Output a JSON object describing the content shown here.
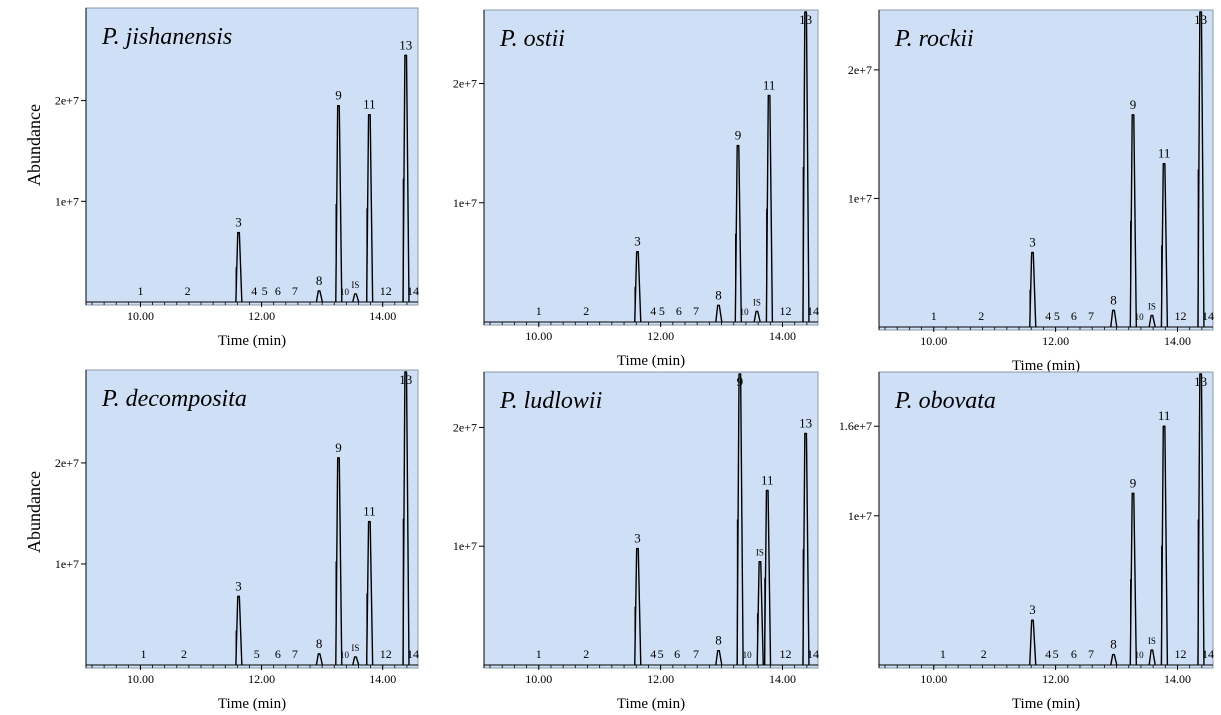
{
  "figure": {
    "y_axis_label": "Abundance",
    "x_axis_label": "Time (min)"
  },
  "chart_data": [
    {
      "type": "line",
      "title": "P. jishanensis",
      "xlabel": "Time (min)",
      "ylabel": "Abundance",
      "xlim": [
        9.2,
        14.55
      ],
      "ylim": [
        0,
        29000000
      ],
      "x_ticks": [
        10,
        12,
        14
      ],
      "x_tick_labels": [
        "10.00",
        "12.00",
        "14.00"
      ],
      "y_ticks": [
        10000000,
        20000000
      ],
      "y_tick_labels": [
        "1e+7",
        "2e+7"
      ],
      "grid": false,
      "series": [
        {
          "peaks": [
            {
              "label": "1",
              "x": 10.0,
              "y": 0
            },
            {
              "label": "2",
              "x": 10.78,
              "y": 0
            },
            {
              "label": "3",
              "x": 11.62,
              "y": 6900000
            },
            {
              "label": "4",
              "x": 11.88,
              "y": 0
            },
            {
              "label": "5",
              "x": 12.05,
              "y": 0
            },
            {
              "label": "6",
              "x": 12.27,
              "y": 0
            },
            {
              "label": "7",
              "x": 12.55,
              "y": 0
            },
            {
              "label": "8",
              "x": 12.95,
              "y": 1100000
            },
            {
              "label": "9",
              "x": 13.27,
              "y": 19500000
            },
            {
              "label": "10",
              "x": 13.37,
              "y": 0
            },
            {
              "label": "IS",
              "x": 13.55,
              "y": 800000
            },
            {
              "label": "11",
              "x": 13.78,
              "y": 18600000
            },
            {
              "label": "12",
              "x": 14.05,
              "y": 0
            },
            {
              "label": "13",
              "x": 14.38,
              "y": 24500000
            },
            {
              "label": "14",
              "x": 14.5,
              "y": 0
            }
          ]
        }
      ]
    },
    {
      "type": "line",
      "title": "P. ostii",
      "xlabel": "Time (min)",
      "ylabel": "",
      "xlim": [
        9.2,
        14.55
      ],
      "ylim": [
        0,
        26000000
      ],
      "x_ticks": [
        10,
        12,
        14
      ],
      "x_tick_labels": [
        "10.00",
        "12.00",
        "14.00"
      ],
      "y_ticks": [
        10000000,
        20000000
      ],
      "y_tick_labels": [
        "1e+7",
        "2e+7"
      ],
      "grid": false,
      "series": [
        {
          "peaks": [
            {
              "label": "1",
              "x": 10.0,
              "y": 0
            },
            {
              "label": "2",
              "x": 10.78,
              "y": 0
            },
            {
              "label": "3",
              "x": 11.62,
              "y": 5900000
            },
            {
              "label": "4",
              "x": 11.88,
              "y": 0
            },
            {
              "label": "5",
              "x": 12.02,
              "y": 0
            },
            {
              "label": "6",
              "x": 12.3,
              "y": 0
            },
            {
              "label": "7",
              "x": 12.58,
              "y": 0
            },
            {
              "label": "8",
              "x": 12.95,
              "y": 1400000
            },
            {
              "label": "9",
              "x": 13.27,
              "y": 14800000
            },
            {
              "label": "10",
              "x": 13.37,
              "y": 0
            },
            {
              "label": "IS",
              "x": 13.58,
              "y": 900000
            },
            {
              "label": "11",
              "x": 13.78,
              "y": 19000000
            },
            {
              "label": "12",
              "x": 14.05,
              "y": 0
            },
            {
              "label": "13",
              "x": 14.38,
              "y": 26000000
            },
            {
              "label": "14",
              "x": 14.5,
              "y": 0
            }
          ]
        }
      ]
    },
    {
      "type": "line",
      "title": "P. rockii",
      "xlabel": "Time (min)",
      "ylabel": "",
      "xlim": [
        9.2,
        14.55
      ],
      "ylim": [
        0,
        24500000
      ],
      "x_ticks": [
        10,
        12,
        14
      ],
      "x_tick_labels": [
        "10.00",
        "12.00",
        "14.00"
      ],
      "y_ticks": [
        10000000,
        20000000
      ],
      "y_tick_labels": [
        "1e+7",
        "2e+7"
      ],
      "grid": false,
      "series": [
        {
          "peaks": [
            {
              "label": "1",
              "x": 10.0,
              "y": 0
            },
            {
              "label": "2",
              "x": 10.78,
              "y": 0
            },
            {
              "label": "3",
              "x": 11.62,
              "y": 5800000
            },
            {
              "label": "4",
              "x": 11.88,
              "y": 0
            },
            {
              "label": "5",
              "x": 12.02,
              "y": 0
            },
            {
              "label": "6",
              "x": 12.3,
              "y": 0
            },
            {
              "label": "7",
              "x": 12.58,
              "y": 0
            },
            {
              "label": "8",
              "x": 12.95,
              "y": 1300000
            },
            {
              "label": "9",
              "x": 13.27,
              "y": 16500000
            },
            {
              "label": "10",
              "x": 13.37,
              "y": 0
            },
            {
              "label": "IS",
              "x": 13.58,
              "y": 900000
            },
            {
              "label": "11",
              "x": 13.78,
              "y": 12700000
            },
            {
              "label": "12",
              "x": 14.05,
              "y": 0
            },
            {
              "label": "13",
              "x": 14.38,
              "y": 24500000
            },
            {
              "label": "14",
              "x": 14.5,
              "y": 0
            }
          ]
        }
      ]
    },
    {
      "type": "line",
      "title": "P. decomposita",
      "xlabel": "Time (min)",
      "ylabel": "Abundance",
      "xlim": [
        9.2,
        14.55
      ],
      "ylim": [
        0,
        29000000
      ],
      "x_ticks": [
        10,
        12,
        14
      ],
      "x_tick_labels": [
        "10.00",
        "12.00",
        "14.00"
      ],
      "y_ticks": [
        10000000,
        20000000
      ],
      "y_tick_labels": [
        "1e+7",
        "2e+7"
      ],
      "grid": false,
      "series": [
        {
          "peaks": [
            {
              "label": "1",
              "x": 10.05,
              "y": 0
            },
            {
              "label": "2",
              "x": 10.72,
              "y": 0
            },
            {
              "label": "3",
              "x": 11.62,
              "y": 6800000
            },
            {
              "label": "5",
              "x": 11.92,
              "y": 0
            },
            {
              "label": "6",
              "x": 12.27,
              "y": 0
            },
            {
              "label": "7",
              "x": 12.55,
              "y": 0
            },
            {
              "label": "8",
              "x": 12.95,
              "y": 1100000
            },
            {
              "label": "9",
              "x": 13.27,
              "y": 20500000
            },
            {
              "label": "10",
              "x": 13.37,
              "y": 0
            },
            {
              "label": "IS",
              "x": 13.55,
              "y": 800000
            },
            {
              "label": "11",
              "x": 13.78,
              "y": 14200000
            },
            {
              "label": "12",
              "x": 14.05,
              "y": 0
            },
            {
              "label": "13",
              "x": 14.38,
              "y": 29000000
            },
            {
              "label": "14",
              "x": 14.5,
              "y": 0
            }
          ]
        }
      ]
    },
    {
      "type": "line",
      "title": "P. ludlowii",
      "xlabel": "Time (min)",
      "ylabel": "",
      "xlim": [
        9.2,
        14.55
      ],
      "ylim": [
        0,
        24500000
      ],
      "x_ticks": [
        10,
        12,
        14
      ],
      "x_tick_labels": [
        "10.00",
        "12.00",
        "14.00"
      ],
      "y_ticks": [
        10000000,
        20000000
      ],
      "y_tick_labels": [
        "1e+7",
        "2e+7"
      ],
      "grid": false,
      "series": [
        {
          "peaks": [
            {
              "label": "1",
              "x": 10.0,
              "y": 0
            },
            {
              "label": "2",
              "x": 10.78,
              "y": 0
            },
            {
              "label": "3",
              "x": 11.62,
              "y": 9800000
            },
            {
              "label": "4",
              "x": 11.88,
              "y": 0
            },
            {
              "label": "5",
              "x": 12.0,
              "y": 0
            },
            {
              "label": "6",
              "x": 12.27,
              "y": 0
            },
            {
              "label": "7",
              "x": 12.58,
              "y": 0
            },
            {
              "label": "8",
              "x": 12.95,
              "y": 1200000
            },
            {
              "label": "9",
              "x": 13.3,
              "y": 24500000
            },
            {
              "label": "10",
              "x": 13.42,
              "y": 0
            },
            {
              "label": "IS",
              "x": 13.63,
              "y": 8700000
            },
            {
              "label": "11",
              "x": 13.75,
              "y": 14700000
            },
            {
              "label": "12",
              "x": 14.05,
              "y": 0
            },
            {
              "label": "13",
              "x": 14.38,
              "y": 19500000
            },
            {
              "label": "14",
              "x": 14.5,
              "y": 0
            }
          ]
        }
      ]
    },
    {
      "type": "line",
      "title": "P. obovata",
      "xlabel": "Time (min)",
      "ylabel": "",
      "xlim": [
        9.2,
        14.55
      ],
      "ylim": [
        0,
        19500000
      ],
      "x_ticks": [
        10,
        12,
        14
      ],
      "x_tick_labels": [
        "10.00",
        "12.00",
        "14.00"
      ],
      "y_ticks": [
        10000000,
        16000000
      ],
      "y_tick_labels": [
        "1e+7",
        "1.6e+7"
      ],
      "grid": false,
      "series": [
        {
          "peaks": [
            {
              "label": "1",
              "x": 10.15,
              "y": 0
            },
            {
              "label": "2",
              "x": 10.82,
              "y": 0
            },
            {
              "label": "3",
              "x": 11.62,
              "y": 3000000
            },
            {
              "label": "4",
              "x": 11.88,
              "y": 0
            },
            {
              "label": "5",
              "x": 12.0,
              "y": 0
            },
            {
              "label": "6",
              "x": 12.3,
              "y": 0
            },
            {
              "label": "7",
              "x": 12.58,
              "y": 0
            },
            {
              "label": "8",
              "x": 12.95,
              "y": 700000
            },
            {
              "label": "9",
              "x": 13.27,
              "y": 11500000
            },
            {
              "label": "10",
              "x": 13.37,
              "y": 0
            },
            {
              "label": "IS",
              "x": 13.58,
              "y": 1000000
            },
            {
              "label": "11",
              "x": 13.78,
              "y": 16000000
            },
            {
              "label": "12",
              "x": 14.05,
              "y": 0
            },
            {
              "label": "13",
              "x": 14.38,
              "y": 19500000
            },
            {
              "label": "14",
              "x": 14.5,
              "y": 0
            }
          ]
        }
      ]
    }
  ]
}
